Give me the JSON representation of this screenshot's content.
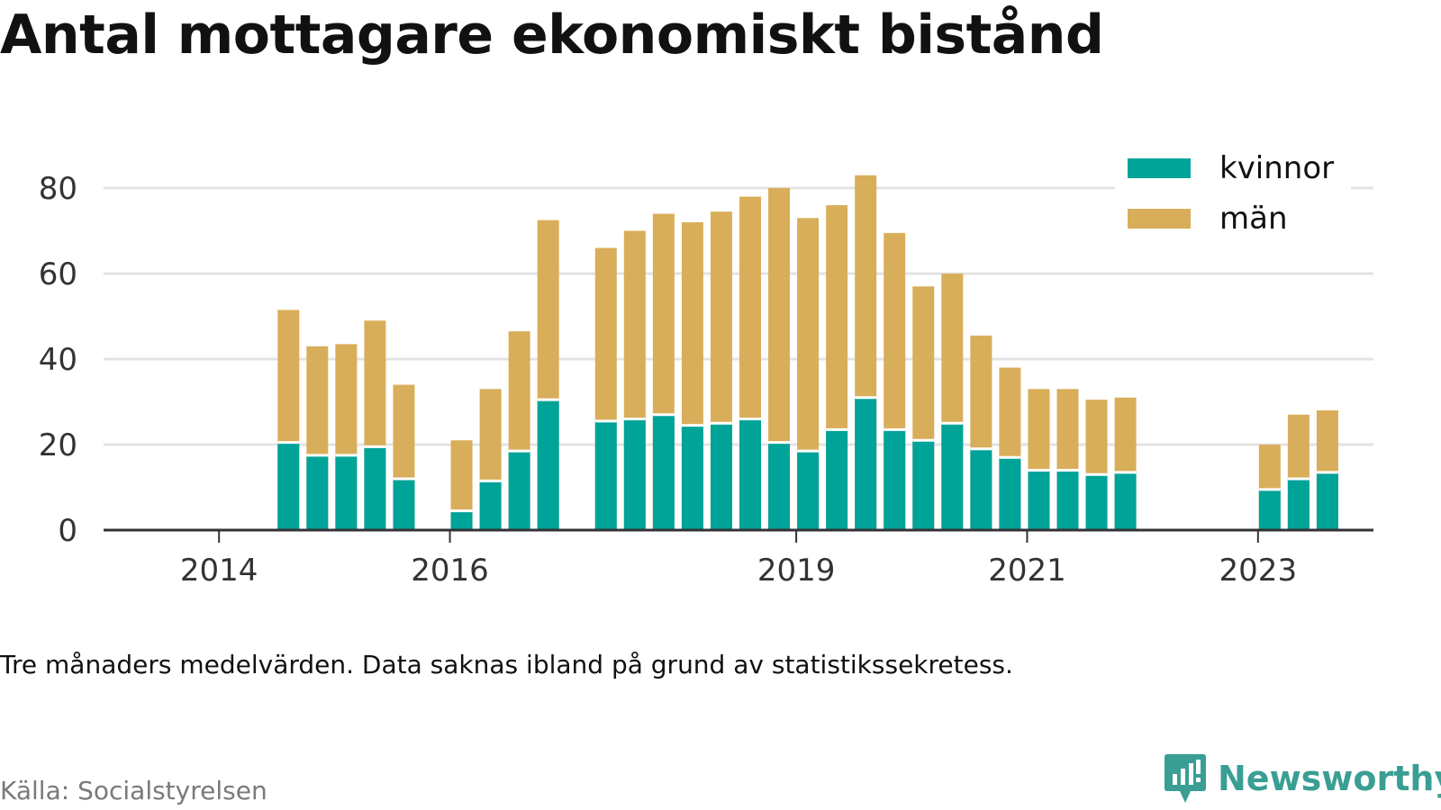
{
  "title": "Antal mottagare ekonomiskt bistånd",
  "caption": "Tre månaders medelvärden. Data saknas ibland på grund av statistikssekretess.",
  "source": "Källa: Socialstyrelsen",
  "brand": {
    "name": "Newsworthy",
    "icon": "newsworthy-logo-icon",
    "color": "#3a9e94"
  },
  "chart_data": {
    "type": "bar",
    "stacked": true,
    "title": "Antal mottagare ekonomiskt bistånd",
    "xlabel": "",
    "ylabel": "",
    "ylim": [
      0,
      85
    ],
    "y_ticks": [
      0,
      20,
      40,
      60,
      80
    ],
    "x_ticks": [
      "2014",
      "2016",
      "2019",
      "2021",
      "2023"
    ],
    "grid": true,
    "legend_position": "top-right",
    "series": [
      {
        "name": "kvinnor",
        "color": "#00a398"
      },
      {
        "name": "män",
        "color": "#d9ae5a"
      }
    ],
    "periods": [
      {
        "date": "2014-07",
        "kvinnor": 20.5,
        "man": 51.5
      },
      {
        "date": "2014-10",
        "kvinnor": 17.5,
        "man": 43
      },
      {
        "date": "2015-01",
        "kvinnor": 17.5,
        "man": 43.5
      },
      {
        "date": "2015-04",
        "kvinnor": 19.5,
        "man": 49
      },
      {
        "date": "2015-07",
        "kvinnor": 12,
        "man": 34
      },
      {
        "date": "2016-01",
        "kvinnor": 4.5,
        "man": 21
      },
      {
        "date": "2016-04",
        "kvinnor": 11.5,
        "man": 33
      },
      {
        "date": "2016-07",
        "kvinnor": 18.5,
        "man": 46.5
      },
      {
        "date": "2016-10",
        "kvinnor": 30.5,
        "man": 72.5
      },
      {
        "date": "2017-04",
        "kvinnor": 25.5,
        "man": 66
      },
      {
        "date": "2017-07",
        "kvinnor": 26,
        "man": 70
      },
      {
        "date": "2017-10",
        "kvinnor": 27,
        "man": 74
      },
      {
        "date": "2018-01",
        "kvinnor": 24.5,
        "man": 72
      },
      {
        "date": "2018-04",
        "kvinnor": 25,
        "man": 74.5
      },
      {
        "date": "2018-07",
        "kvinnor": 26,
        "man": 78
      },
      {
        "date": "2018-10",
        "kvinnor": 20.5,
        "man": 80
      },
      {
        "date": "2019-01",
        "kvinnor": 18.5,
        "man": 73
      },
      {
        "date": "2019-04",
        "kvinnor": 23.5,
        "man": 76
      },
      {
        "date": "2019-07",
        "kvinnor": 31,
        "man": 83
      },
      {
        "date": "2019-10",
        "kvinnor": 23.5,
        "man": 69.5
      },
      {
        "date": "2020-01",
        "kvinnor": 21,
        "man": 57
      },
      {
        "date": "2020-04",
        "kvinnor": 25,
        "man": 60
      },
      {
        "date": "2020-07",
        "kvinnor": 19,
        "man": 45.5
      },
      {
        "date": "2020-10",
        "kvinnor": 17,
        "man": 38
      },
      {
        "date": "2021-01",
        "kvinnor": 14,
        "man": 33
      },
      {
        "date": "2021-04",
        "kvinnor": 14,
        "man": 33
      },
      {
        "date": "2021-07",
        "kvinnor": 13,
        "man": 30.5
      },
      {
        "date": "2021-10",
        "kvinnor": 13.5,
        "man": 31
      },
      {
        "date": "2023-01",
        "kvinnor": 9.5,
        "man": 20
      },
      {
        "date": "2023-04",
        "kvinnor": 12,
        "man": 27
      },
      {
        "date": "2023-07",
        "kvinnor": 13.5,
        "man": 28
      }
    ]
  }
}
